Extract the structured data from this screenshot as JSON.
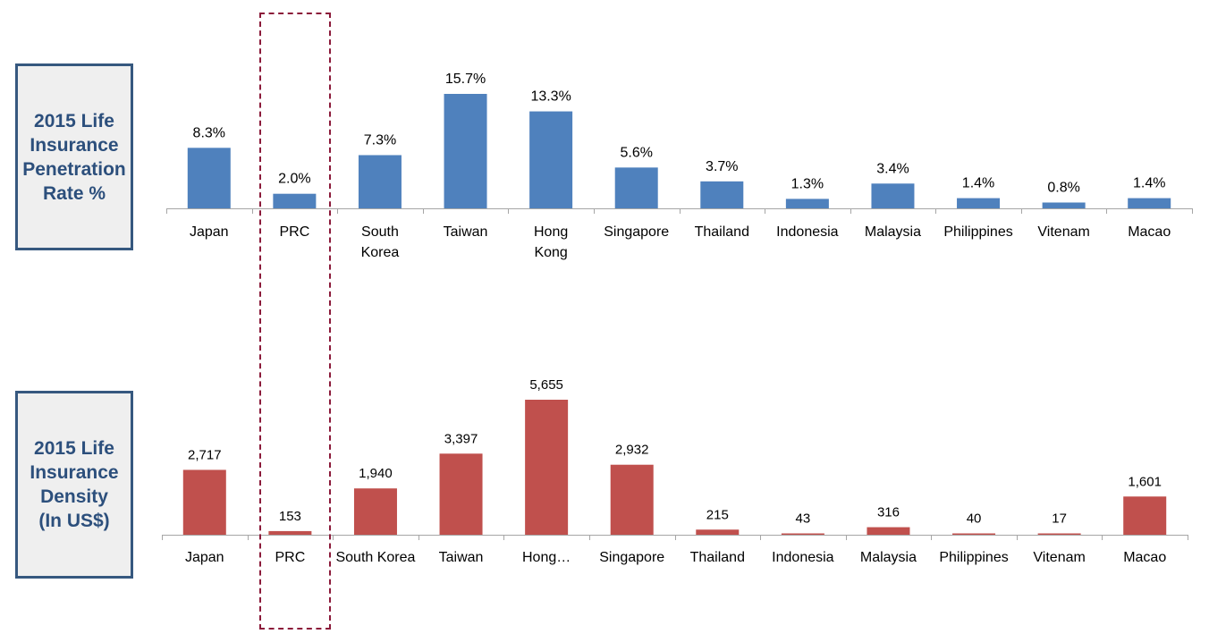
{
  "panels": [
    {
      "label_lines": [
        "2015 Life",
        "Insurance",
        "Penetration",
        "Rate %"
      ]
    },
    {
      "label_lines": [
        "2015 Life",
        "Insurance",
        "Density",
        "(In US$)"
      ]
    }
  ],
  "chart_data": [
    {
      "type": "bar",
      "categories": [
        "Japan",
        "PRC",
        "South Korea",
        "Taiwan",
        "Hong Kong",
        "Singapore",
        "Thailand",
        "Indonesia",
        "Malaysia",
        "Philippines",
        "Vitenam",
        "Macao"
      ],
      "category_display": [
        [
          "Japan"
        ],
        [
          "PRC"
        ],
        [
          "South",
          "Korea"
        ],
        [
          "Taiwan"
        ],
        [
          "Hong",
          "Kong"
        ],
        [
          "Singapore"
        ],
        [
          "Thailand"
        ],
        [
          "Indonesia"
        ],
        [
          "Malaysia"
        ],
        [
          "Philippines"
        ],
        [
          "Vitenam"
        ],
        [
          "Macao"
        ]
      ],
      "values": [
        8.3,
        2.0,
        7.3,
        15.7,
        13.3,
        5.6,
        3.7,
        1.3,
        3.4,
        1.4,
        0.8,
        1.4
      ],
      "value_labels": [
        "8.3%",
        "2.0%",
        "7.3%",
        "15.7%",
        "13.3%",
        "5.6%",
        "3.7%",
        "1.3%",
        "3.4%",
        "1.4%",
        "0.8%",
        "1.4%"
      ],
      "unit": "%",
      "color": "#4f81bd",
      "ylim": [
        0,
        15.7
      ],
      "grid": false
    },
    {
      "type": "bar",
      "categories": [
        "Japan",
        "PRC",
        "South Korea",
        "Taiwan",
        "Hong Kong",
        "Singapore",
        "Thailand",
        "Indonesia",
        "Malaysia",
        "Philippines",
        "Vitenam",
        "Macao"
      ],
      "category_display": [
        [
          "Japan"
        ],
        [
          "PRC"
        ],
        [
          "South Korea"
        ],
        [
          "Taiwan"
        ],
        [
          "Hong…"
        ],
        [
          "Singapore"
        ],
        [
          "Thailand"
        ],
        [
          "Indonesia"
        ],
        [
          "Malaysia"
        ],
        [
          "Philippines"
        ],
        [
          "Vitenam"
        ],
        [
          "Macao"
        ]
      ],
      "values": [
        2717,
        153,
        1940,
        3397,
        5655,
        2932,
        215,
        43,
        316,
        40,
        17,
        1601
      ],
      "value_labels": [
        "2,717",
        "153",
        "1,940",
        "3,397",
        "5,655",
        "2,932",
        "215",
        "43",
        "316",
        "40",
        "17",
        "1,601"
      ],
      "unit": "US$",
      "color": "#c0504d",
      "ylim": [
        0,
        5655
      ],
      "grid": false
    }
  ],
  "highlight": {
    "category": "PRC",
    "color": "#8b1a3a"
  }
}
